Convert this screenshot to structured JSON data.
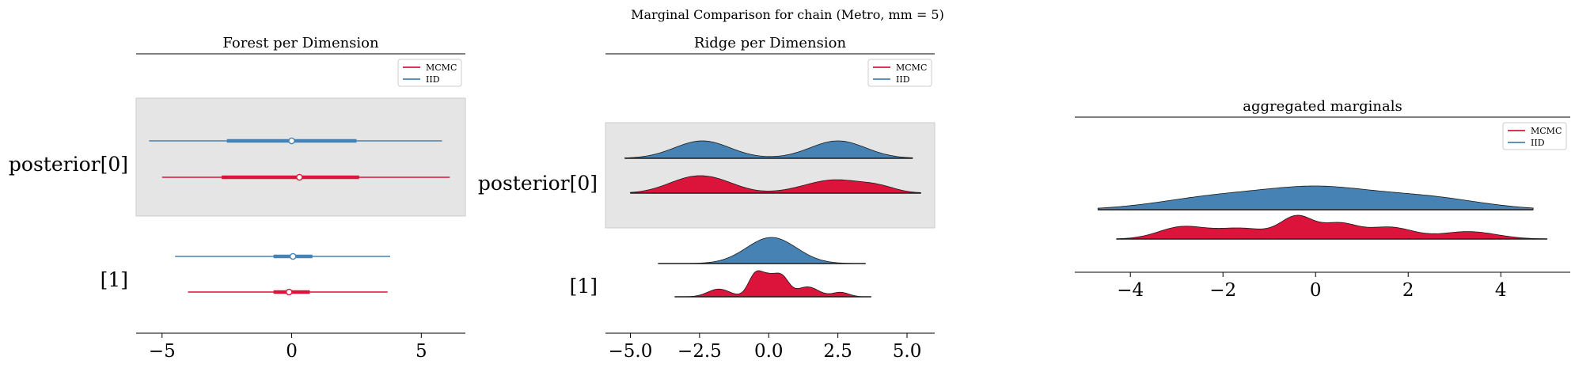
{
  "suptitle": "Marginal Comparison for chain (Metro, mm = 5)",
  "colors": {
    "mcmc": "#dc143c",
    "iid": "#4682b4",
    "band": "#e5e5e5",
    "band_edge": "#cccccc"
  },
  "chart_data": [
    {
      "type": "forest",
      "title": "Forest per Dimension",
      "xlim": [
        -6.0,
        6.7
      ],
      "xticks": [
        -5,
        0,
        5
      ],
      "xtick_labels": [
        "−5",
        "0",
        "5"
      ],
      "legend": {
        "placement": "top-right",
        "entries": [
          "MCMC",
          "IID"
        ]
      },
      "row_labels": [
        "posterior[0]",
        "[1]"
      ],
      "rows": [
        {
          "label": "posterior[0]",
          "shaded": true,
          "series": [
            {
              "name": "IID",
              "min": -5.5,
              "q25": -2.5,
              "median": 0.0,
              "q75": 2.5,
              "max": 5.8
            },
            {
              "name": "MCMC",
              "min": -5.0,
              "q25": -2.7,
              "median": 0.3,
              "q75": 2.6,
              "max": 6.1
            }
          ]
        },
        {
          "label": "[1]",
          "shaded": false,
          "series": [
            {
              "name": "IID",
              "min": -4.5,
              "q25": -0.7,
              "median": 0.05,
              "q75": 0.8,
              "max": 3.8
            },
            {
              "name": "MCMC",
              "min": -4.0,
              "q25": -0.7,
              "median": -0.1,
              "q75": 0.7,
              "max": 3.7
            }
          ]
        }
      ]
    },
    {
      "type": "ridge",
      "title": "Ridge per Dimension",
      "xlim": [
        -5.9,
        6.0
      ],
      "xticks": [
        -5.0,
        -2.5,
        0.0,
        2.5,
        5.0
      ],
      "xtick_labels": [
        "−5.0",
        "−2.5",
        "0.0",
        "2.5",
        "5.0"
      ],
      "legend": {
        "placement": "top-right",
        "entries": [
          "MCMC",
          "IID"
        ]
      },
      "row_labels": [
        "posterior[0]",
        "[1]"
      ],
      "rows": [
        {
          "label": "posterior[0]",
          "shaded": true,
          "series": [
            {
              "name": "IID",
              "range": [
                -5.2,
                5.2
              ],
              "modes": [
                [
                  -2.4,
                  1.0,
                  1.0
                ],
                [
                  2.5,
                  1.0,
                  1.0
                ]
              ]
            },
            {
              "name": "MCMC",
              "range": [
                -5.0,
                5.5
              ],
              "modes": [
                [
                  -2.8,
                  0.9,
                  1.0
                ],
                [
                  -1.7,
                  0.8,
                  0.5
                ],
                [
                  2.4,
                  1.1,
                  0.95
                ],
                [
                  4.0,
                  0.6,
                  0.3
                ]
              ]
            }
          ]
        },
        {
          "label": "[1]",
          "shaded": false,
          "series": [
            {
              "name": "IID",
              "range": [
                -4.0,
                3.5
              ],
              "modes": [
                [
                  0.1,
                  0.9,
                  1.0
                ]
              ]
            },
            {
              "name": "MCMC",
              "range": [
                -3.4,
                3.7
              ],
              "modes": [
                [
                  -0.5,
                  0.25,
                  0.9
                ],
                [
                  0.0,
                  0.3,
                  0.85
                ],
                [
                  0.5,
                  0.25,
                  0.75
                ],
                [
                  -1.8,
                  0.4,
                  0.35
                ],
                [
                  1.4,
                  0.4,
                  0.45
                ],
                [
                  2.6,
                  0.3,
                  0.2
                ]
              ]
            }
          ]
        }
      ]
    },
    {
      "type": "ridge",
      "title": "aggregated marginals",
      "xlim": [
        -5.2,
        5.5
      ],
      "xticks": [
        -4,
        -2,
        0,
        2,
        4
      ],
      "xtick_labels": [
        "−4",
        "−2",
        "0",
        "2",
        "4"
      ],
      "legend": {
        "placement": "top-right",
        "entries": [
          "MCMC",
          "IID"
        ]
      },
      "row_labels": [],
      "rows": [
        {
          "label": "",
          "shaded": false,
          "series": [
            {
              "name": "IID",
              "range": [
                -4.7,
                4.7
              ],
              "modes": [
                [
                  -2.0,
                  1.3,
                  0.75
                ],
                [
                  0.1,
                  1.1,
                  1.0
                ],
                [
                  2.3,
                  1.2,
                  0.7
                ]
              ]
            },
            {
              "name": "MCMC",
              "range": [
                -4.3,
                5.0
              ],
              "modes": [
                [
                  -2.9,
                  0.5,
                  0.55
                ],
                [
                  -1.6,
                  0.6,
                  0.5
                ],
                [
                  -0.4,
                  0.35,
                  1.0
                ],
                [
                  0.5,
                  0.4,
                  0.7
                ],
                [
                  1.6,
                  0.5,
                  0.55
                ],
                [
                  3.3,
                  0.6,
                  0.35
                ]
              ]
            }
          ]
        }
      ]
    }
  ]
}
